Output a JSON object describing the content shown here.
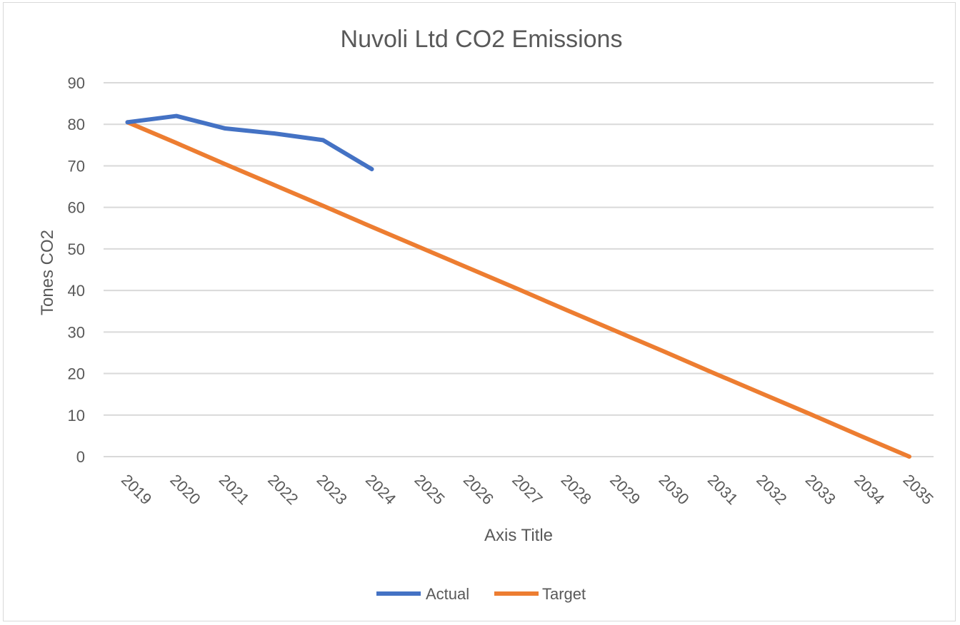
{
  "chart_data": {
    "type": "line",
    "title": "Nuvoli Ltd CO2 Emissions",
    "xlabel": "Axis Title",
    "ylabel": "Tones CO2",
    "categories": [
      "2019",
      "2020",
      "2021",
      "2022",
      "2023",
      "2024",
      "2025",
      "2026",
      "2027",
      "2028",
      "2029",
      "2030",
      "2031",
      "2032",
      "2033",
      "2034",
      "2035"
    ],
    "y_ticks": [
      "0",
      "10",
      "20",
      "30",
      "40",
      "50",
      "60",
      "70",
      "80",
      "90"
    ],
    "ylim": [
      0,
      90
    ],
    "grid": true,
    "legend_position": "bottom",
    "series": [
      {
        "name": "Actual",
        "color": "#4472C4",
        "values": [
          80.5,
          82,
          79,
          77.8,
          76.2,
          69.2,
          null,
          null,
          null,
          null,
          null,
          null,
          null,
          null,
          null,
          null,
          null
        ]
      },
      {
        "name": "Target",
        "color": "#ED7D31",
        "values": [
          80.5,
          75.5,
          70.4,
          65.4,
          60.4,
          55.3,
          50.3,
          45.3,
          40.3,
          35.2,
          30.2,
          25.2,
          20.1,
          15.1,
          10.1,
          5,
          0
        ]
      }
    ]
  }
}
